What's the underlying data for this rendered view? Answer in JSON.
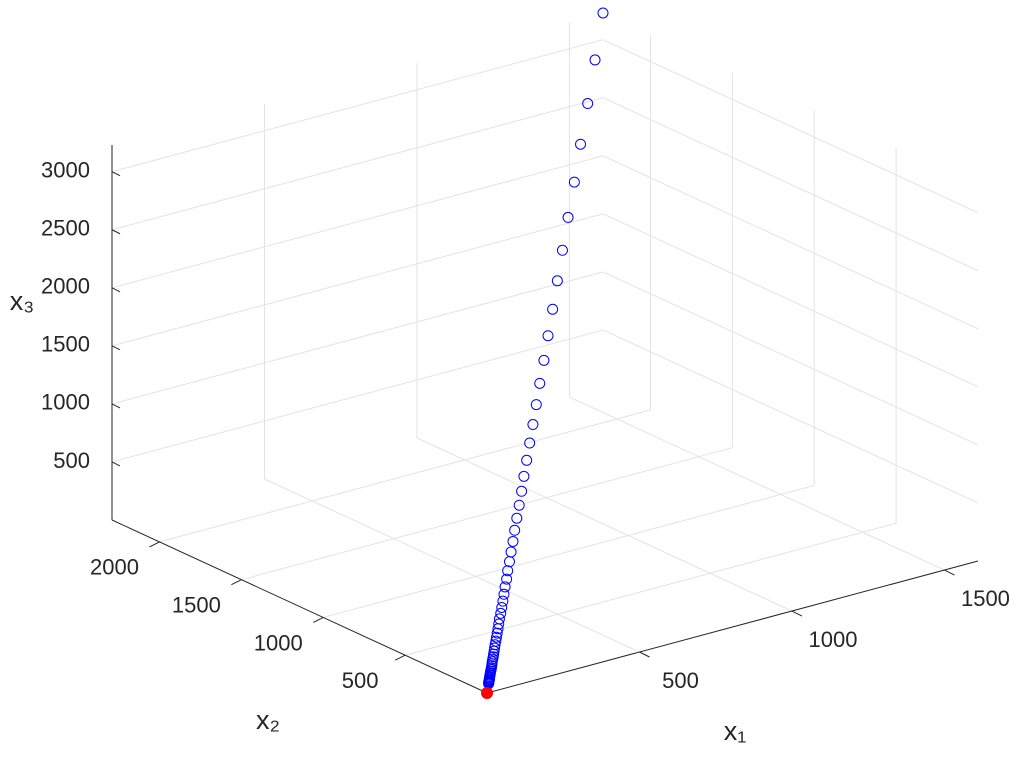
{
  "chart_data": {
    "type": "scatter3d",
    "xlabel": "x₁",
    "ylabel": "x₂",
    "zlabel": "x₃",
    "x1lim": [
      0,
      1610
    ],
    "x2lim": [
      0,
      2290
    ],
    "x3lim": [
      0,
      3230
    ],
    "x1ticks": [
      500,
      1000,
      1500
    ],
    "x2ticks": [
      500,
      1000,
      1500,
      2000
    ],
    "x3ticks": [
      500,
      1000,
      1500,
      2000,
      2500,
      3000
    ],
    "grid": true,
    "points": {
      "color": "#0000ff",
      "x1": [
        22,
        24,
        25,
        27,
        29,
        32,
        34,
        36,
        39,
        42,
        45,
        48,
        52,
        56,
        60,
        65,
        69,
        74,
        80,
        86,
        92,
        99,
        106,
        114,
        123,
        132,
        142,
        152,
        163,
        175,
        189,
        203,
        218,
        234,
        251,
        270,
        289,
        311,
        334,
        359,
        385,
        414,
        445,
        478,
        513,
        551,
        592,
        636,
        683,
        733,
        788,
        846,
        909,
        976,
        1048,
        1126,
        1210,
        1299,
        1396,
        1499,
        1610
      ],
      "x2": [
        31,
        34,
        36,
        39,
        42,
        45,
        48,
        52,
        56,
        60,
        64,
        69,
        74,
        79,
        85,
        92,
        98,
        106,
        114,
        122,
        131,
        141,
        151,
        163,
        175,
        188,
        202,
        216,
        232,
        250,
        268,
        288,
        309,
        332,
        357,
        383,
        412,
        442,
        475,
        510,
        548,
        589,
        632,
        679,
        730,
        784,
        842,
        904,
        971,
        1043,
        1120,
        1203,
        1292,
        1388,
        1491,
        1602,
        1720,
        1848,
        1985,
        2132,
        2290
      ],
      "x3": [
        44,
        47,
        51,
        55,
        59,
        63,
        68,
        73,
        78,
        84,
        90,
        97,
        104,
        112,
        120,
        130,
        139,
        149,
        161,
        172,
        185,
        199,
        214,
        229,
        246,
        265,
        284,
        305,
        328,
        352,
        378,
        406,
        436,
        469,
        504,
        541,
        581,
        624,
        670,
        720,
        773,
        830,
        892,
        958,
        1029,
        1105,
        1187,
        1275,
        1370,
        1471,
        1580,
        1697,
        1823,
        1958,
        2103,
        2259,
        2427,
        2607,
        2800,
        3007,
        3230
      ]
    },
    "start": {
      "color": "#ff0000",
      "x1": 0,
      "x2": 0,
      "x3": 0
    }
  }
}
